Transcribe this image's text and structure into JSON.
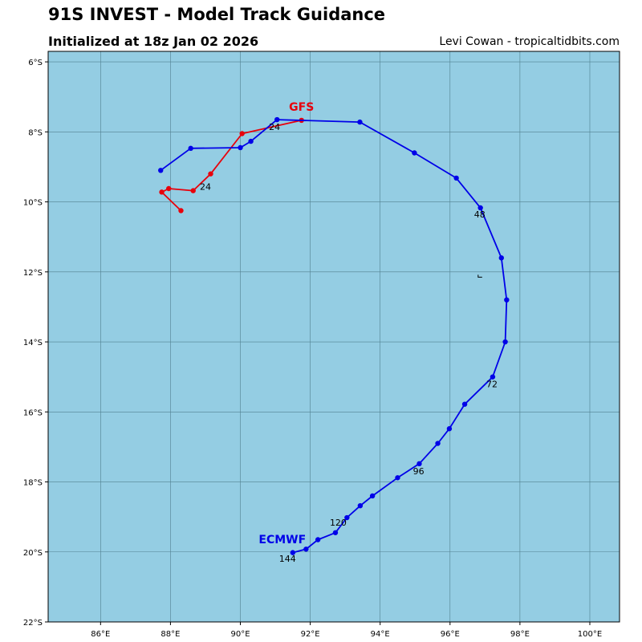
{
  "header": {
    "title": "91S INVEST - Model Track Guidance",
    "subtitle": "Initialized at 18z Jan 02 2026",
    "credit": "Levi Cowan - tropicaltidbits.com"
  },
  "colors": {
    "ocean": "#94cde3",
    "grid": "#51808f",
    "gfs": "#e8000b",
    "ecmwf": "#0000e8"
  },
  "map": {
    "lon_range": [
      84.5,
      100.85
    ],
    "lat_range": [
      -22.0,
      -5.7
    ],
    "x_ticks": [
      {
        "value": 86,
        "label": "86°E"
      },
      {
        "value": 88,
        "label": "88°E"
      },
      {
        "value": 90,
        "label": "90°E"
      },
      {
        "value": 92,
        "label": "92°E"
      },
      {
        "value": 94,
        "label": "94°E"
      },
      {
        "value": 96,
        "label": "96°E"
      },
      {
        "value": 98,
        "label": "98°E"
      },
      {
        "value": 100,
        "label": "100°E"
      }
    ],
    "y_ticks": [
      {
        "value": -6,
        "label": "6°S"
      },
      {
        "value": -8,
        "label": "8°S"
      },
      {
        "value": -10,
        "label": "10°S"
      },
      {
        "value": -12,
        "label": "12°S"
      },
      {
        "value": -14,
        "label": "14°S"
      },
      {
        "value": -16,
        "label": "16°S"
      },
      {
        "value": -18,
        "label": "18°S"
      },
      {
        "value": -20,
        "label": "20°S"
      },
      {
        "value": -22,
        "label": "22°S"
      }
    ],
    "island_mark": {
      "lon": 96.85,
      "lat": -12.15
    }
  },
  "tracks": [
    {
      "name": "GFS",
      "color": "#e8000b",
      "label": {
        "text": "GFS",
        "lon": 91.75,
        "lat": -7.4
      },
      "points": [
        [
          91.75,
          -7.67
        ],
        [
          90.05,
          -8.05
        ],
        [
          89.15,
          -9.2
        ],
        [
          88.65,
          -9.68
        ],
        [
          87.95,
          -9.62
        ],
        [
          87.75,
          -9.72
        ],
        [
          88.3,
          -10.25
        ]
      ],
      "hour_labels": [
        {
          "text": "24",
          "lon": 89.0,
          "lat": -9.65
        }
      ]
    },
    {
      "name": "ECMWF",
      "color": "#0000e8",
      "label": {
        "text": "ECMWF",
        "lon": 91.2,
        "lat": -19.75
      },
      "points": [
        [
          87.72,
          -9.1
        ],
        [
          88.58,
          -8.47
        ],
        [
          90.0,
          -8.45
        ],
        [
          90.3,
          -8.27
        ],
        [
          91.05,
          -7.65
        ],
        [
          93.42,
          -7.72
        ],
        [
          94.98,
          -8.6
        ],
        [
          96.18,
          -9.32
        ],
        [
          96.87,
          -10.17
        ],
        [
          97.47,
          -11.6
        ],
        [
          97.62,
          -12.8
        ],
        [
          97.58,
          -14.0
        ],
        [
          97.22,
          -15.0
        ],
        [
          96.42,
          -15.78
        ],
        [
          95.98,
          -16.48
        ],
        [
          95.65,
          -16.9
        ],
        [
          95.12,
          -17.48
        ],
        [
          94.5,
          -17.88
        ],
        [
          93.78,
          -18.4
        ],
        [
          93.43,
          -18.68
        ],
        [
          93.05,
          -19.02
        ],
        [
          92.72,
          -19.45
        ],
        [
          92.22,
          -19.65
        ],
        [
          91.88,
          -19.92
        ],
        [
          91.5,
          -20.02
        ]
      ],
      "hour_labels": [
        {
          "text": "24",
          "lon": 90.98,
          "lat": -7.95
        },
        {
          "text": "48",
          "lon": 96.85,
          "lat": -10.45
        },
        {
          "text": "72",
          "lon": 97.2,
          "lat": -15.3
        },
        {
          "text": "96",
          "lon": 95.1,
          "lat": -17.78
        },
        {
          "text": "120",
          "lon": 92.8,
          "lat": -19.25
        },
        {
          "text": "144",
          "lon": 91.35,
          "lat": -20.28
        }
      ]
    }
  ]
}
